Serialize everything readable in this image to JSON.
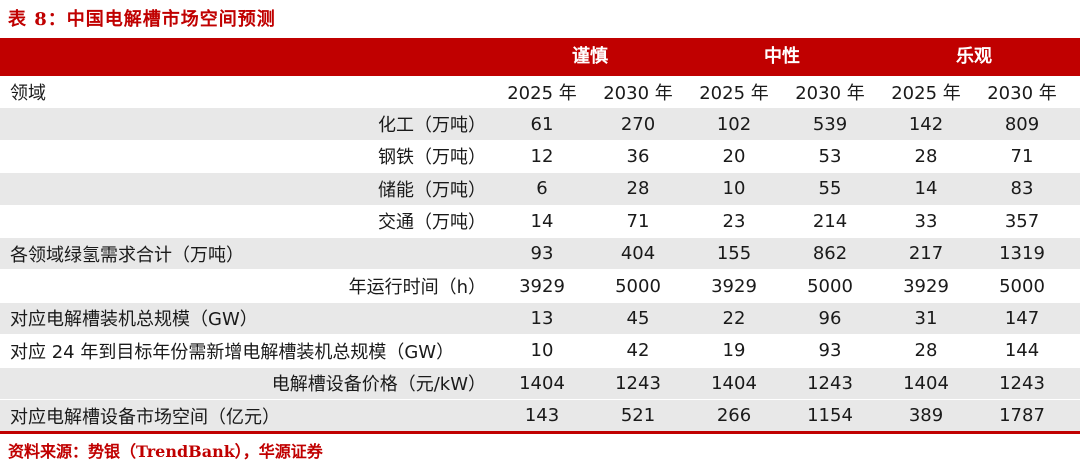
{
  "title": "表 8：中国电解槽市场空间预测",
  "groups": [
    "谨慎",
    "中性",
    "乐观"
  ],
  "subheader": {
    "label": "领域",
    "years": [
      "2025 年",
      "2030 年",
      "2025 年",
      "2030 年",
      "2025 年",
      "2030 年"
    ]
  },
  "rows": [
    {
      "label": "化工（万吨）",
      "values": [
        "61",
        "270",
        "102",
        "539",
        "142",
        "809"
      ]
    },
    {
      "label": "钢铁（万吨）",
      "values": [
        "12",
        "36",
        "20",
        "53",
        "28",
        "71"
      ]
    },
    {
      "label": "储能（万吨）",
      "values": [
        "6",
        "28",
        "10",
        "55",
        "14",
        "83"
      ]
    },
    {
      "label": "交通（万吨）",
      "values": [
        "14",
        "71",
        "23",
        "214",
        "33",
        "357"
      ]
    },
    {
      "label": "各领域绿氢需求合计（万吨）",
      "values": [
        "93",
        "404",
        "155",
        "862",
        "217",
        "1319"
      ]
    },
    {
      "label": "年运行时间（h）",
      "values": [
        "3929",
        "5000",
        "3929",
        "5000",
        "3929",
        "5000"
      ]
    },
    {
      "label": "对应电解槽装机总规模（GW）",
      "values": [
        "13",
        "45",
        "22",
        "96",
        "31",
        "147"
      ]
    },
    {
      "label": "对应 24 年到目标年份需新增电解槽装机总规模（GW）",
      "values": [
        "10",
        "42",
        "19",
        "93",
        "28",
        "144"
      ]
    },
    {
      "label": "电解槽设备价格（元/kW）",
      "values": [
        "1404",
        "1243",
        "1404",
        "1243",
        "1404",
        "1243"
      ]
    },
    {
      "label": "对应电解槽设备市场空间（亿元）",
      "values": [
        "143",
        "521",
        "266",
        "1154",
        "389",
        "1787"
      ]
    }
  ],
  "source": "资料来源：势银（TrendBank），华源证券"
}
